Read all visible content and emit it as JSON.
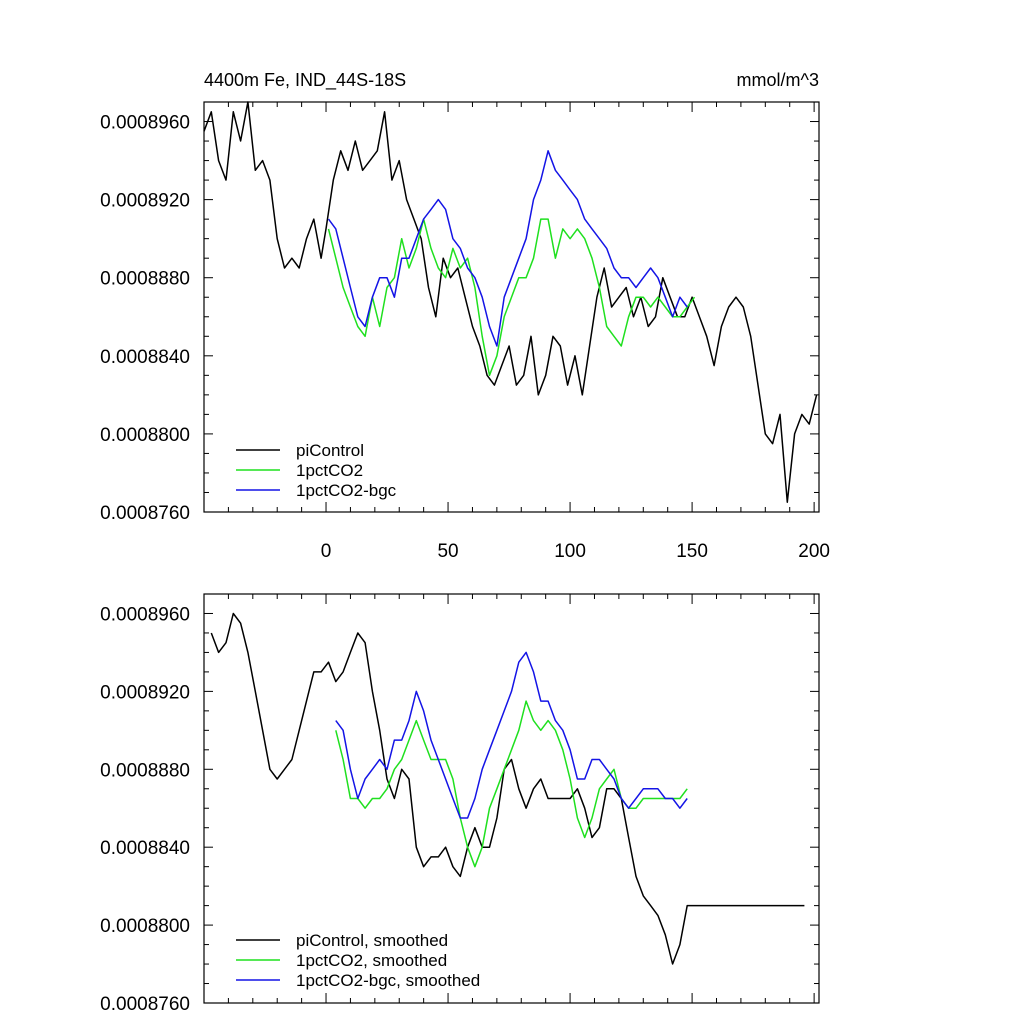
{
  "figure": {
    "title_left": "4400m Fe, IND_44S-18S",
    "title_right": "mmol/m^3"
  },
  "chart_data": [
    {
      "type": "line",
      "panel": "top",
      "xlim": [
        -50,
        202
      ],
      "ylim": [
        0.000876,
        0.000897
      ],
      "yticks": [
        0.000876,
        0.00088,
        0.000884,
        0.000888,
        0.000892,
        0.000896
      ],
      "ytick_labels": [
        "0.0008760",
        "0.0008800",
        "0.0008840",
        "0.0008880",
        "0.0008920",
        "0.0008960"
      ],
      "xticks": [
        0,
        50,
        100,
        150,
        200
      ],
      "xtick_labels": [
        "0",
        "50",
        "100",
        "150",
        "200"
      ],
      "legend_position": "lower-left",
      "grid": false,
      "series": [
        {
          "name": "piControl",
          "color": "#000000",
          "x": [
            -50,
            -47,
            -44,
            -41,
            -38,
            -35,
            -32,
            -29,
            -26,
            -23,
            -20,
            -17,
            -14,
            -11,
            -8,
            -5,
            -2,
            0,
            3,
            6,
            9,
            12,
            15,
            18,
            21,
            24,
            27,
            30,
            33,
            36,
            39,
            42,
            45,
            48,
            51,
            54,
            57,
            60,
            63,
            66,
            69,
            72,
            75,
            78,
            81,
            84,
            87,
            90,
            93,
            96,
            99,
            102,
            105,
            108,
            111,
            114,
            117,
            120,
            123,
            126,
            129,
            132,
            135,
            138,
            141,
            144,
            147,
            150,
            153,
            156,
            159,
            162,
            165,
            168,
            171,
            174,
            177,
            180,
            183,
            186,
            189,
            192,
            195,
            198,
            201
          ],
          "y": [
            0.0008955,
            0.0008965,
            0.000894,
            0.000893,
            0.0008965,
            0.000895,
            0.000897,
            0.0008935,
            0.000894,
            0.000893,
            0.00089,
            0.0008885,
            0.000889,
            0.0008885,
            0.00089,
            0.000891,
            0.000889,
            0.0008905,
            0.000893,
            0.0008945,
            0.0008935,
            0.000895,
            0.0008935,
            0.000894,
            0.0008945,
            0.0008965,
            0.000893,
            0.000894,
            0.000892,
            0.000891,
            0.00089,
            0.0008875,
            0.000886,
            0.000889,
            0.000888,
            0.0008885,
            0.000887,
            0.0008855,
            0.0008845,
            0.000883,
            0.0008825,
            0.0008835,
            0.0008845,
            0.0008825,
            0.000883,
            0.000885,
            0.000882,
            0.000883,
            0.000885,
            0.0008845,
            0.0008825,
            0.000884,
            0.000882,
            0.0008845,
            0.000887,
            0.0008885,
            0.0008865,
            0.000887,
            0.0008875,
            0.000886,
            0.000887,
            0.0008855,
            0.000886,
            0.000888,
            0.000887,
            0.000886,
            0.000886,
            0.000887,
            0.000886,
            0.000885,
            0.0008835,
            0.0008855,
            0.0008865,
            0.000887,
            0.0008865,
            0.000885,
            0.0008825,
            0.00088,
            0.0008795,
            0.000881,
            0.0008765,
            0.00088,
            0.000881,
            0.0008805,
            0.000882
          ]
        },
        {
          "name": "1pctCO2",
          "color": "#1fe01f",
          "x": [
            1,
            4,
            7,
            10,
            13,
            16,
            19,
            22,
            25,
            28,
            31,
            34,
            37,
            40,
            43,
            46,
            49,
            52,
            55,
            58,
            61,
            64,
            67,
            70,
            73,
            76,
            79,
            82,
            85,
            88,
            91,
            94,
            97,
            100,
            103,
            106,
            109,
            112,
            115,
            118,
            121,
            124,
            127,
            130,
            133,
            136,
            139,
            142,
            145,
            148,
            151
          ],
          "y": [
            0.0008905,
            0.000889,
            0.0008875,
            0.0008865,
            0.0008855,
            0.000885,
            0.000887,
            0.0008855,
            0.0008875,
            0.000888,
            0.00089,
            0.0008885,
            0.0008895,
            0.000891,
            0.0008895,
            0.0008885,
            0.000888,
            0.0008895,
            0.0008885,
            0.000889,
            0.0008875,
            0.000885,
            0.000883,
            0.000884,
            0.000886,
            0.000887,
            0.000888,
            0.000888,
            0.000889,
            0.000891,
            0.000891,
            0.000889,
            0.0008905,
            0.00089,
            0.0008905,
            0.00089,
            0.000889,
            0.0008875,
            0.0008855,
            0.000885,
            0.0008845,
            0.000886,
            0.000887,
            0.000887,
            0.0008865,
            0.000887,
            0.0008865,
            0.000886,
            0.000886,
            0.0008865,
            0.000887
          ]
        },
        {
          "name": "1pctCO2-bgc",
          "color": "#1414e6",
          "x": [
            1,
            4,
            7,
            10,
            13,
            16,
            19,
            22,
            25,
            28,
            31,
            34,
            37,
            40,
            43,
            46,
            49,
            52,
            55,
            58,
            61,
            64,
            67,
            70,
            73,
            76,
            79,
            82,
            85,
            88,
            91,
            94,
            97,
            100,
            103,
            106,
            109,
            112,
            115,
            118,
            121,
            124,
            127,
            130,
            133,
            136,
            139,
            142,
            145,
            148
          ],
          "y": [
            0.000891,
            0.0008905,
            0.000889,
            0.0008875,
            0.000886,
            0.0008855,
            0.000887,
            0.000888,
            0.000888,
            0.000887,
            0.000889,
            0.000889,
            0.00089,
            0.000891,
            0.0008915,
            0.000892,
            0.0008915,
            0.00089,
            0.0008895,
            0.0008885,
            0.000888,
            0.000887,
            0.0008855,
            0.0008845,
            0.000887,
            0.000888,
            0.000889,
            0.00089,
            0.000892,
            0.000893,
            0.0008945,
            0.0008935,
            0.000893,
            0.0008925,
            0.000892,
            0.000891,
            0.0008905,
            0.00089,
            0.0008895,
            0.0008885,
            0.000888,
            0.000888,
            0.0008875,
            0.000888,
            0.0008885,
            0.000888,
            0.000887,
            0.000886,
            0.000887,
            0.0008865
          ]
        }
      ]
    },
    {
      "type": "line",
      "panel": "bottom",
      "xlim": [
        -50,
        202
      ],
      "ylim": [
        0.000876,
        0.000897
      ],
      "yticks": [
        0.000876,
        0.00088,
        0.000884,
        0.000888,
        0.000892,
        0.000896
      ],
      "ytick_labels": [
        "0.0008760",
        "0.0008800",
        "0.0008840",
        "0.0008880",
        "0.0008920",
        "0.0008960"
      ],
      "legend_position": "lower-left",
      "grid": false,
      "series": [
        {
          "name": "piControl, smoothed",
          "color": "#000000",
          "x": [
            -47,
            -44,
            -41,
            -38,
            -35,
            -32,
            -29,
            -26,
            -23,
            -20,
            -17,
            -14,
            -11,
            -8,
            -5,
            -2,
            1,
            4,
            7,
            10,
            13,
            16,
            19,
            22,
            25,
            28,
            31,
            34,
            37,
            40,
            43,
            46,
            49,
            52,
            55,
            58,
            61,
            64,
            67,
            70,
            73,
            76,
            79,
            82,
            85,
            88,
            91,
            94,
            97,
            100,
            103,
            106,
            109,
            112,
            115,
            118,
            121,
            124,
            127,
            130,
            133,
            136,
            139,
            142,
            145,
            148,
            151,
            154,
            157,
            160,
            163,
            166,
            169,
            172,
            175,
            178,
            181,
            184,
            187,
            190,
            193,
            196
          ],
          "y": [
            0.000895,
            0.000894,
            0.0008945,
            0.000896,
            0.0008955,
            0.000894,
            0.000892,
            0.00089,
            0.000888,
            0.0008875,
            0.000888,
            0.0008885,
            0.00089,
            0.0008915,
            0.000893,
            0.000893,
            0.0008935,
            0.0008925,
            0.000893,
            0.000894,
            0.000895,
            0.0008945,
            0.000892,
            0.00089,
            0.0008875,
            0.0008865,
            0.000888,
            0.0008875,
            0.000884,
            0.000883,
            0.0008835,
            0.0008835,
            0.000884,
            0.000883,
            0.0008825,
            0.000884,
            0.000885,
            0.000884,
            0.000884,
            0.0008855,
            0.000888,
            0.0008885,
            0.000887,
            0.000886,
            0.000887,
            0.0008875,
            0.0008865,
            0.0008865,
            0.0008865,
            0.0008865,
            0.000887,
            0.000886,
            0.0008845,
            0.000885,
            0.000887,
            0.000887,
            0.0008865,
            0.0008845,
            0.0008825,
            0.0008815,
            0.000881,
            0.0008805,
            0.0008795,
            0.000878,
            0.000879,
            0.000881,
            0.000881,
            0.000881,
            0.000881,
            0.000881,
            0.000881,
            0.000881,
            0.000881,
            0.000881,
            0.000881,
            0.000881,
            0.000881,
            0.000881,
            0.000881,
            0.000881,
            0.000881,
            0.000881
          ]
        },
        {
          "name": "1pctCO2, smoothed",
          "color": "#1fe01f",
          "x": [
            4,
            7,
            10,
            13,
            16,
            19,
            22,
            25,
            28,
            31,
            34,
            37,
            40,
            43,
            46,
            49,
            52,
            55,
            58,
            61,
            64,
            67,
            70,
            73,
            76,
            79,
            82,
            85,
            88,
            91,
            94,
            97,
            100,
            103,
            106,
            109,
            112,
            115,
            118,
            121,
            124,
            127,
            130,
            133,
            136,
            139,
            142,
            145,
            148
          ],
          "y": [
            0.00089,
            0.0008885,
            0.0008865,
            0.0008865,
            0.000886,
            0.0008865,
            0.0008865,
            0.000887,
            0.000888,
            0.0008885,
            0.0008895,
            0.0008905,
            0.0008895,
            0.0008885,
            0.0008885,
            0.0008885,
            0.0008875,
            0.0008855,
            0.000884,
            0.000883,
            0.000884,
            0.000886,
            0.000887,
            0.000888,
            0.000889,
            0.00089,
            0.0008915,
            0.0008905,
            0.00089,
            0.0008905,
            0.00089,
            0.000889,
            0.0008875,
            0.0008855,
            0.0008845,
            0.0008855,
            0.000887,
            0.0008875,
            0.000888,
            0.0008865,
            0.000886,
            0.000886,
            0.0008865,
            0.0008865,
            0.0008865,
            0.0008865,
            0.0008865,
            0.0008865,
            0.000887
          ]
        },
        {
          "name": "1pctCO2-bgc, smoothed",
          "color": "#1414e6",
          "x": [
            4,
            7,
            10,
            13,
            16,
            19,
            22,
            25,
            28,
            31,
            34,
            37,
            40,
            43,
            46,
            49,
            52,
            55,
            58,
            61,
            64,
            67,
            70,
            73,
            76,
            79,
            82,
            85,
            88,
            91,
            94,
            97,
            100,
            103,
            106,
            109,
            112,
            115,
            118,
            121,
            124,
            127,
            130,
            133,
            136,
            139,
            142,
            145,
            148
          ],
          "y": [
            0.0008905,
            0.00089,
            0.000888,
            0.0008865,
            0.0008875,
            0.000888,
            0.0008885,
            0.000888,
            0.0008895,
            0.0008895,
            0.0008905,
            0.000892,
            0.000891,
            0.0008895,
            0.0008885,
            0.0008875,
            0.0008865,
            0.0008855,
            0.0008855,
            0.0008865,
            0.000888,
            0.000889,
            0.00089,
            0.000891,
            0.000892,
            0.0008935,
            0.000894,
            0.000893,
            0.0008915,
            0.0008915,
            0.0008905,
            0.00089,
            0.000889,
            0.0008875,
            0.0008875,
            0.0008885,
            0.0008885,
            0.000888,
            0.0008875,
            0.0008865,
            0.000886,
            0.0008865,
            0.000887,
            0.000887,
            0.000887,
            0.0008865,
            0.0008865,
            0.000886,
            0.0008865
          ]
        }
      ]
    }
  ]
}
